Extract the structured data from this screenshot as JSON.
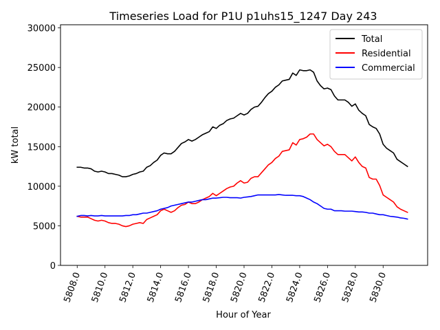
{
  "chart_data": {
    "type": "line",
    "title": "Timeseries Load for P1U p1uhs15_1247  Day 243",
    "xlabel": "Hour of Year",
    "ylabel": "kW total",
    "xlim": [
      5806.8,
      5833.2
    ],
    "ylim": [
      0,
      30400
    ],
    "xticks": [
      5808,
      5810,
      5812,
      5814,
      5816,
      5818,
      5820,
      5822,
      5824,
      5826,
      5828,
      5830
    ],
    "xtick_labels": [
      "5808.0",
      "5810.0",
      "5812.0",
      "5814.0",
      "5816.0",
      "5818.0",
      "5820.0",
      "5822.0",
      "5824.0",
      "5826.0",
      "5828.0",
      "5830.0"
    ],
    "yticks": [
      0,
      5000,
      10000,
      15000,
      20000,
      25000,
      30000
    ],
    "ytick_labels": [
      "0",
      "5000",
      "10000",
      "15000",
      "20000",
      "25000",
      "30000"
    ],
    "legend_position": "top-right",
    "x_start": 5808,
    "x_step": 0.25,
    "series": [
      {
        "name": "Total",
        "color": "#000000",
        "values": [
          12400,
          12400,
          12300,
          12300,
          12200,
          11900,
          11800,
          11900,
          11800,
          11600,
          11600,
          11500,
          11400,
          11200,
          11200,
          11300,
          11500,
          11600,
          11800,
          11900,
          12400,
          12600,
          13000,
          13300,
          13900,
          14200,
          14100,
          14100,
          14400,
          14900,
          15400,
          15600,
          15900,
          15700,
          15900,
          16200,
          16500,
          16700,
          16900,
          17500,
          17300,
          17700,
          17900,
          18300,
          18500,
          18600,
          18900,
          19200,
          19000,
          19200,
          19700,
          20000,
          20100,
          20600,
          21200,
          21700,
          22000,
          22500,
          22800,
          23300,
          23400,
          23500,
          24300,
          24000,
          24700,
          24600,
          24600,
          24700,
          24400,
          23300,
          22700,
          22300,
          22400,
          22200,
          21400,
          20900,
          20900,
          20900,
          20600,
          20100,
          20400,
          19600,
          19200,
          18900,
          17800,
          17500,
          17300,
          16600,
          15300,
          14800,
          14500,
          14200,
          13400,
          13100,
          12800,
          12500
        ]
      },
      {
        "name": "Residential",
        "color": "#ff0000",
        "values": [
          6200,
          6100,
          6100,
          6100,
          5900,
          5700,
          5600,
          5700,
          5600,
          5400,
          5300,
          5300,
          5200,
          5000,
          4900,
          5000,
          5200,
          5300,
          5400,
          5300,
          5800,
          6000,
          6200,
          6400,
          6900,
          7100,
          6900,
          6700,
          6900,
          7300,
          7600,
          7700,
          8000,
          7800,
          7800,
          8000,
          8300,
          8500,
          8700,
          9100,
          8800,
          9100,
          9400,
          9700,
          9900,
          10000,
          10400,
          10700,
          10400,
          10500,
          11000,
          11200,
          11200,
          11700,
          12200,
          12700,
          13000,
          13500,
          13800,
          14400,
          14500,
          14600,
          15500,
          15200,
          15900,
          16000,
          16200,
          16600,
          16600,
          15900,
          15500,
          15100,
          15300,
          15000,
          14400,
          14000,
          14000,
          14000,
          13600,
          13200,
          13700,
          13000,
          12500,
          12300,
          11100,
          10900,
          10900,
          10100,
          8900,
          8600,
          8300,
          8000,
          7400,
          7100,
          6900,
          6700
        ]
      },
      {
        "name": "Commercial",
        "color": "#0000ff",
        "values": [
          6200,
          6300,
          6300,
          6250,
          6300,
          6250,
          6250,
          6300,
          6250,
          6250,
          6250,
          6250,
          6250,
          6250,
          6300,
          6300,
          6400,
          6400,
          6500,
          6600,
          6600,
          6700,
          6800,
          6900,
          7100,
          7200,
          7300,
          7500,
          7600,
          7700,
          7800,
          7900,
          8000,
          8000,
          8100,
          8200,
          8300,
          8300,
          8400,
          8500,
          8500,
          8550,
          8600,
          8600,
          8550,
          8550,
          8550,
          8500,
          8600,
          8650,
          8700,
          8800,
          8900,
          8900,
          8900,
          8900,
          8900,
          8900,
          8950,
          8900,
          8850,
          8850,
          8850,
          8800,
          8800,
          8700,
          8500,
          8300,
          8000,
          7800,
          7500,
          7200,
          7100,
          7100,
          6900,
          6900,
          6900,
          6850,
          6850,
          6850,
          6800,
          6750,
          6750,
          6700,
          6600,
          6600,
          6500,
          6400,
          6400,
          6300,
          6200,
          6150,
          6100,
          6000,
          5950,
          5850
        ]
      }
    ]
  }
}
